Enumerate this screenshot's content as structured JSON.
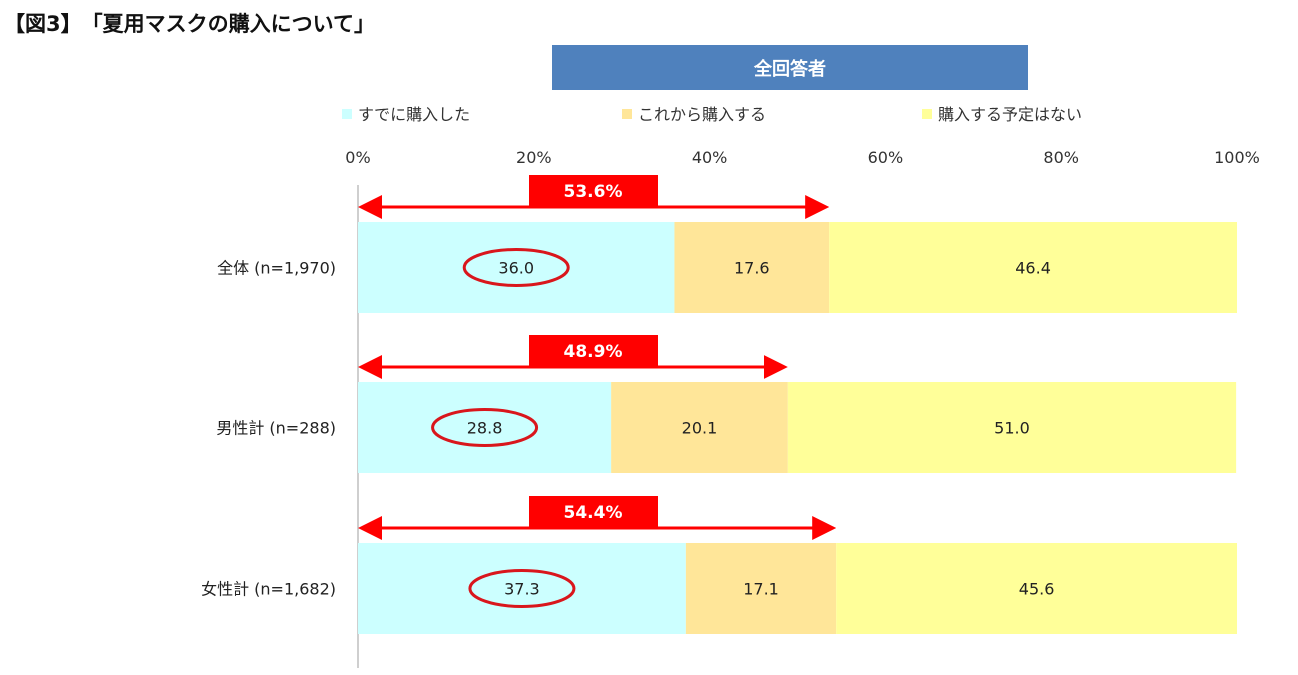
{
  "title": "【図3】　「夏用マスクの購入について」",
  "header": "全回答者",
  "chart_data": {
    "type": "bar",
    "orientation": "horizontal",
    "stacked": true,
    "percent_stacked": true,
    "categories": [
      "全体 (n=1,970)",
      "男性計 (n=288)",
      "女性計 (n=1,682)"
    ],
    "series": [
      {
        "name": "すでに購入した",
        "values": [
          36.0,
          28.8,
          37.3
        ],
        "color": "#ccffff"
      },
      {
        "name": "これから購入する",
        "values": [
          17.6,
          20.1,
          17.1
        ],
        "color": "#ffe699"
      },
      {
        "name": "購入する予定はない",
        "values": [
          46.4,
          51.0,
          45.6
        ],
        "color": "#ffff99"
      }
    ],
    "x_ticks": [
      "0%",
      "20%",
      "40%",
      "60%",
      "80%",
      "100%"
    ],
    "xlim": [
      0,
      100
    ],
    "legend_position": "top",
    "grid": false,
    "annotations": {
      "totals": [
        "53.6%",
        "48.9%",
        "54.4%"
      ],
      "highlight_color": "#ff0000",
      "circled_series": "すでに購入した"
    }
  }
}
